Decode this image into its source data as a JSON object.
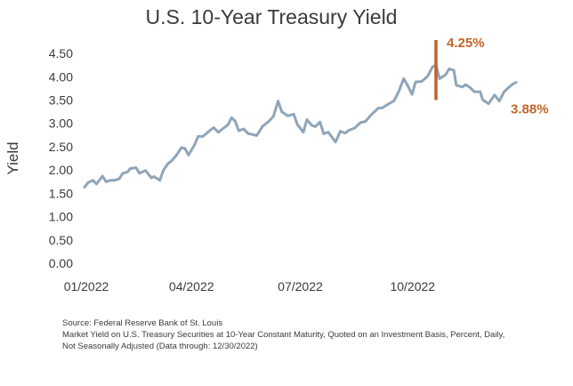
{
  "chart_data": {
    "type": "line",
    "title": "U.S. 10-Year Treasury Yield",
    "ylabel": "Yield",
    "xlabel": "",
    "ylim": [
      0,
      4.75
    ],
    "xlim": [
      "2022-01-03",
      "2022-12-30"
    ],
    "yticks": [
      "0.00",
      "0.50",
      "1.00",
      "1.50",
      "2.00",
      "2.50",
      "3.00",
      "3.50",
      "4.00",
      "4.50"
    ],
    "xticks": [
      {
        "label": "01/2022",
        "date": "2022-01-03"
      },
      {
        "label": "04/2022",
        "date": "2022-04-01"
      },
      {
        "label": "07/2022",
        "date": "2022-07-01"
      },
      {
        "label": "10/2022",
        "date": "2022-10-03"
      }
    ],
    "grid": false,
    "legend": "none",
    "series": [
      {
        "color": "#8fa5b8",
        "points": [
          [
            "2022-01-03",
            1.63
          ],
          [
            "2022-01-06",
            1.73
          ],
          [
            "2022-01-10",
            1.78
          ],
          [
            "2022-01-13",
            1.7
          ],
          [
            "2022-01-18",
            1.87
          ],
          [
            "2022-01-21",
            1.75
          ],
          [
            "2022-01-25",
            1.78
          ],
          [
            "2022-01-28",
            1.78
          ],
          [
            "2022-02-01",
            1.81
          ],
          [
            "2022-02-04",
            1.93
          ],
          [
            "2022-02-08",
            1.96
          ],
          [
            "2022-02-10",
            2.03
          ],
          [
            "2022-02-15",
            2.05
          ],
          [
            "2022-02-18",
            1.93
          ],
          [
            "2022-02-23",
            1.99
          ],
          [
            "2022-02-28",
            1.83
          ],
          [
            "2022-03-02",
            1.86
          ],
          [
            "2022-03-07",
            1.78
          ],
          [
            "2022-03-10",
            2.0
          ],
          [
            "2022-03-14",
            2.14
          ],
          [
            "2022-03-17",
            2.2
          ],
          [
            "2022-03-21",
            2.32
          ],
          [
            "2022-03-25",
            2.48
          ],
          [
            "2022-03-28",
            2.46
          ],
          [
            "2022-03-31",
            2.32
          ],
          [
            "2022-04-05",
            2.54
          ],
          [
            "2022-04-08",
            2.72
          ],
          [
            "2022-04-12",
            2.72
          ],
          [
            "2022-04-18",
            2.85
          ],
          [
            "2022-04-21",
            2.91
          ],
          [
            "2022-04-25",
            2.81
          ],
          [
            "2022-04-29",
            2.89
          ],
          [
            "2022-05-03",
            2.97
          ],
          [
            "2022-05-06",
            3.12
          ],
          [
            "2022-05-09",
            3.05
          ],
          [
            "2022-05-12",
            2.84
          ],
          [
            "2022-05-16",
            2.88
          ],
          [
            "2022-05-20",
            2.78
          ],
          [
            "2022-05-24",
            2.76
          ],
          [
            "2022-05-27",
            2.74
          ],
          [
            "2022-06-01",
            2.94
          ],
          [
            "2022-06-06",
            3.04
          ],
          [
            "2022-06-10",
            3.15
          ],
          [
            "2022-06-14",
            3.48
          ],
          [
            "2022-06-17",
            3.25
          ],
          [
            "2022-06-22",
            3.16
          ],
          [
            "2022-06-27",
            3.2
          ],
          [
            "2022-06-30",
            2.98
          ],
          [
            "2022-07-05",
            2.81
          ],
          [
            "2022-07-08",
            3.08
          ],
          [
            "2022-07-12",
            2.96
          ],
          [
            "2022-07-15",
            2.93
          ],
          [
            "2022-07-19",
            3.03
          ],
          [
            "2022-07-22",
            2.78
          ],
          [
            "2022-07-26",
            2.81
          ],
          [
            "2022-08-01",
            2.6
          ],
          [
            "2022-08-05",
            2.83
          ],
          [
            "2022-08-09",
            2.79
          ],
          [
            "2022-08-12",
            2.85
          ],
          [
            "2022-08-17",
            2.9
          ],
          [
            "2022-08-22",
            3.02
          ],
          [
            "2022-08-26",
            3.04
          ],
          [
            "2022-08-31",
            3.19
          ],
          [
            "2022-09-06",
            3.33
          ],
          [
            "2022-09-09",
            3.33
          ],
          [
            "2022-09-14",
            3.41
          ],
          [
            "2022-09-19",
            3.49
          ],
          [
            "2022-09-23",
            3.69
          ],
          [
            "2022-09-27",
            3.96
          ],
          [
            "2022-09-30",
            3.83
          ],
          [
            "2022-10-04",
            3.62
          ],
          [
            "2022-10-07",
            3.89
          ],
          [
            "2022-10-12",
            3.9
          ],
          [
            "2022-10-17",
            4.01
          ],
          [
            "2022-10-21",
            4.21
          ],
          [
            "2022-10-24",
            4.25
          ],
          [
            "2022-10-27",
            3.96
          ],
          [
            "2022-11-01",
            4.04
          ],
          [
            "2022-11-04",
            4.17
          ],
          [
            "2022-11-08",
            4.14
          ],
          [
            "2022-11-10",
            3.82
          ],
          [
            "2022-11-15",
            3.78
          ],
          [
            "2022-11-18",
            3.83
          ],
          [
            "2022-11-22",
            3.76
          ],
          [
            "2022-11-25",
            3.68
          ],
          [
            "2022-11-30",
            3.68
          ],
          [
            "2022-12-02",
            3.51
          ],
          [
            "2022-12-07",
            3.42
          ],
          [
            "2022-12-12",
            3.61
          ],
          [
            "2022-12-16",
            3.48
          ],
          [
            "2022-12-20",
            3.68
          ],
          [
            "2022-12-23",
            3.75
          ],
          [
            "2022-12-27",
            3.84
          ],
          [
            "2022-12-30",
            3.88
          ]
        ]
      }
    ],
    "annotations": [
      {
        "label": "4.25%",
        "date": "2022-10-24",
        "value": 4.25,
        "color": "#c0652a"
      },
      {
        "label": "3.88%",
        "date": "2022-12-30",
        "value": 3.88,
        "color": "#c0652a"
      }
    ],
    "marker": {
      "date": "2022-10-24",
      "from": 3.5,
      "to": 4.75,
      "color": "#c0652a"
    }
  },
  "footnotes": {
    "source": "Source: Federal Reserve Bank of St. Louis",
    "line2": "Market Yield on U.S. Treasury Securities at 10-Year Constant Maturity, Quoted on an Investment Basis, Percent, Daily,",
    "line3": "Not Seasonally Adjusted (Data through: 12/30/2022)"
  }
}
